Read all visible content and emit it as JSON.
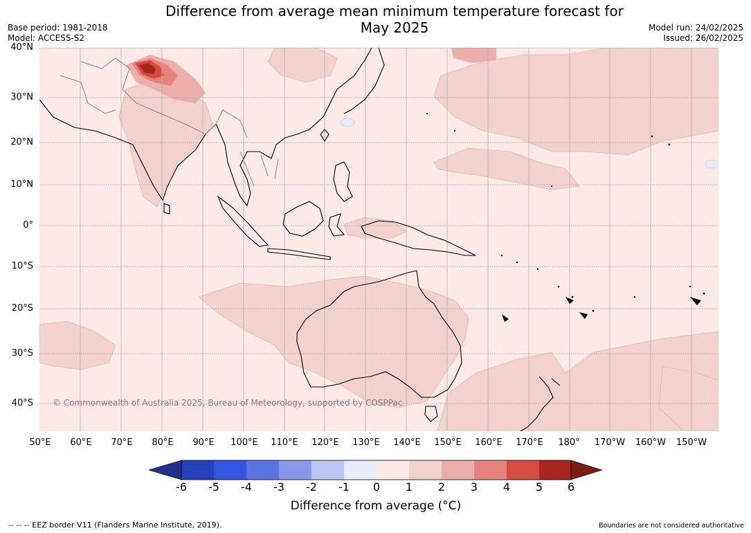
{
  "header": {
    "title_line1": "Difference from average mean minimum temperature forecast for",
    "title_line2": "May 2025",
    "base_period": "Base period: 1981-2018",
    "model": "Model: ACCESS-S2",
    "model_run": "Model run: 24/02/2025",
    "issued": "Issued: 26/02/2025"
  },
  "map": {
    "copyright": "© Commonwealth of Australia 2025, Bureau of Meteorology, supported by COSPPac",
    "lat_labels": [
      "40°N",
      "30°N",
      "20°N",
      "10°N",
      "0°",
      "10°S",
      "20°S",
      "30°S",
      "40°S"
    ],
    "lon_labels": [
      "50°E",
      "60°E",
      "70°E",
      "80°E",
      "90°E",
      "100°E",
      "110°E",
      "120°E",
      "130°E",
      "140°E",
      "150°E",
      "160°E",
      "170°E",
      "180°",
      "170°W",
      "160°W",
      "150°W"
    ],
    "colors": {
      "ocean_land_base": "#fbeae8",
      "anomaly_1_2": "#f3d1cf",
      "anomaly_2_3": "#ecaeab",
      "anomaly_3_4": "#e4837d",
      "anomaly_4_5": "#d64b40",
      "anomaly_5_6": "#a8261f",
      "negative_slight": "#e8ecfb",
      "coast": "#000000",
      "border": "#888888"
    }
  },
  "colorbar": {
    "title": "Difference from average (°C)",
    "tick_labels": [
      "-6",
      "-5",
      "-4",
      "-3",
      "-2",
      "-1",
      "0",
      "1",
      "2",
      "3",
      "4",
      "5",
      "6"
    ],
    "colors": [
      "#222f8c",
      "#2542b8",
      "#3355e0",
      "#5c73e2",
      "#8898e8",
      "#bcc4f1",
      "#e8ebfa",
      "#fbeae8",
      "#f3d1cf",
      "#ecaeab",
      "#e4837d",
      "#d64b40",
      "#a8261f",
      "#7a1d17"
    ]
  },
  "footer": {
    "eez": "--  --  -- EEZ border V11 (Flanders Marine Institute, 2019).",
    "disclaimer": "Boundaries are not considered authoritative"
  }
}
